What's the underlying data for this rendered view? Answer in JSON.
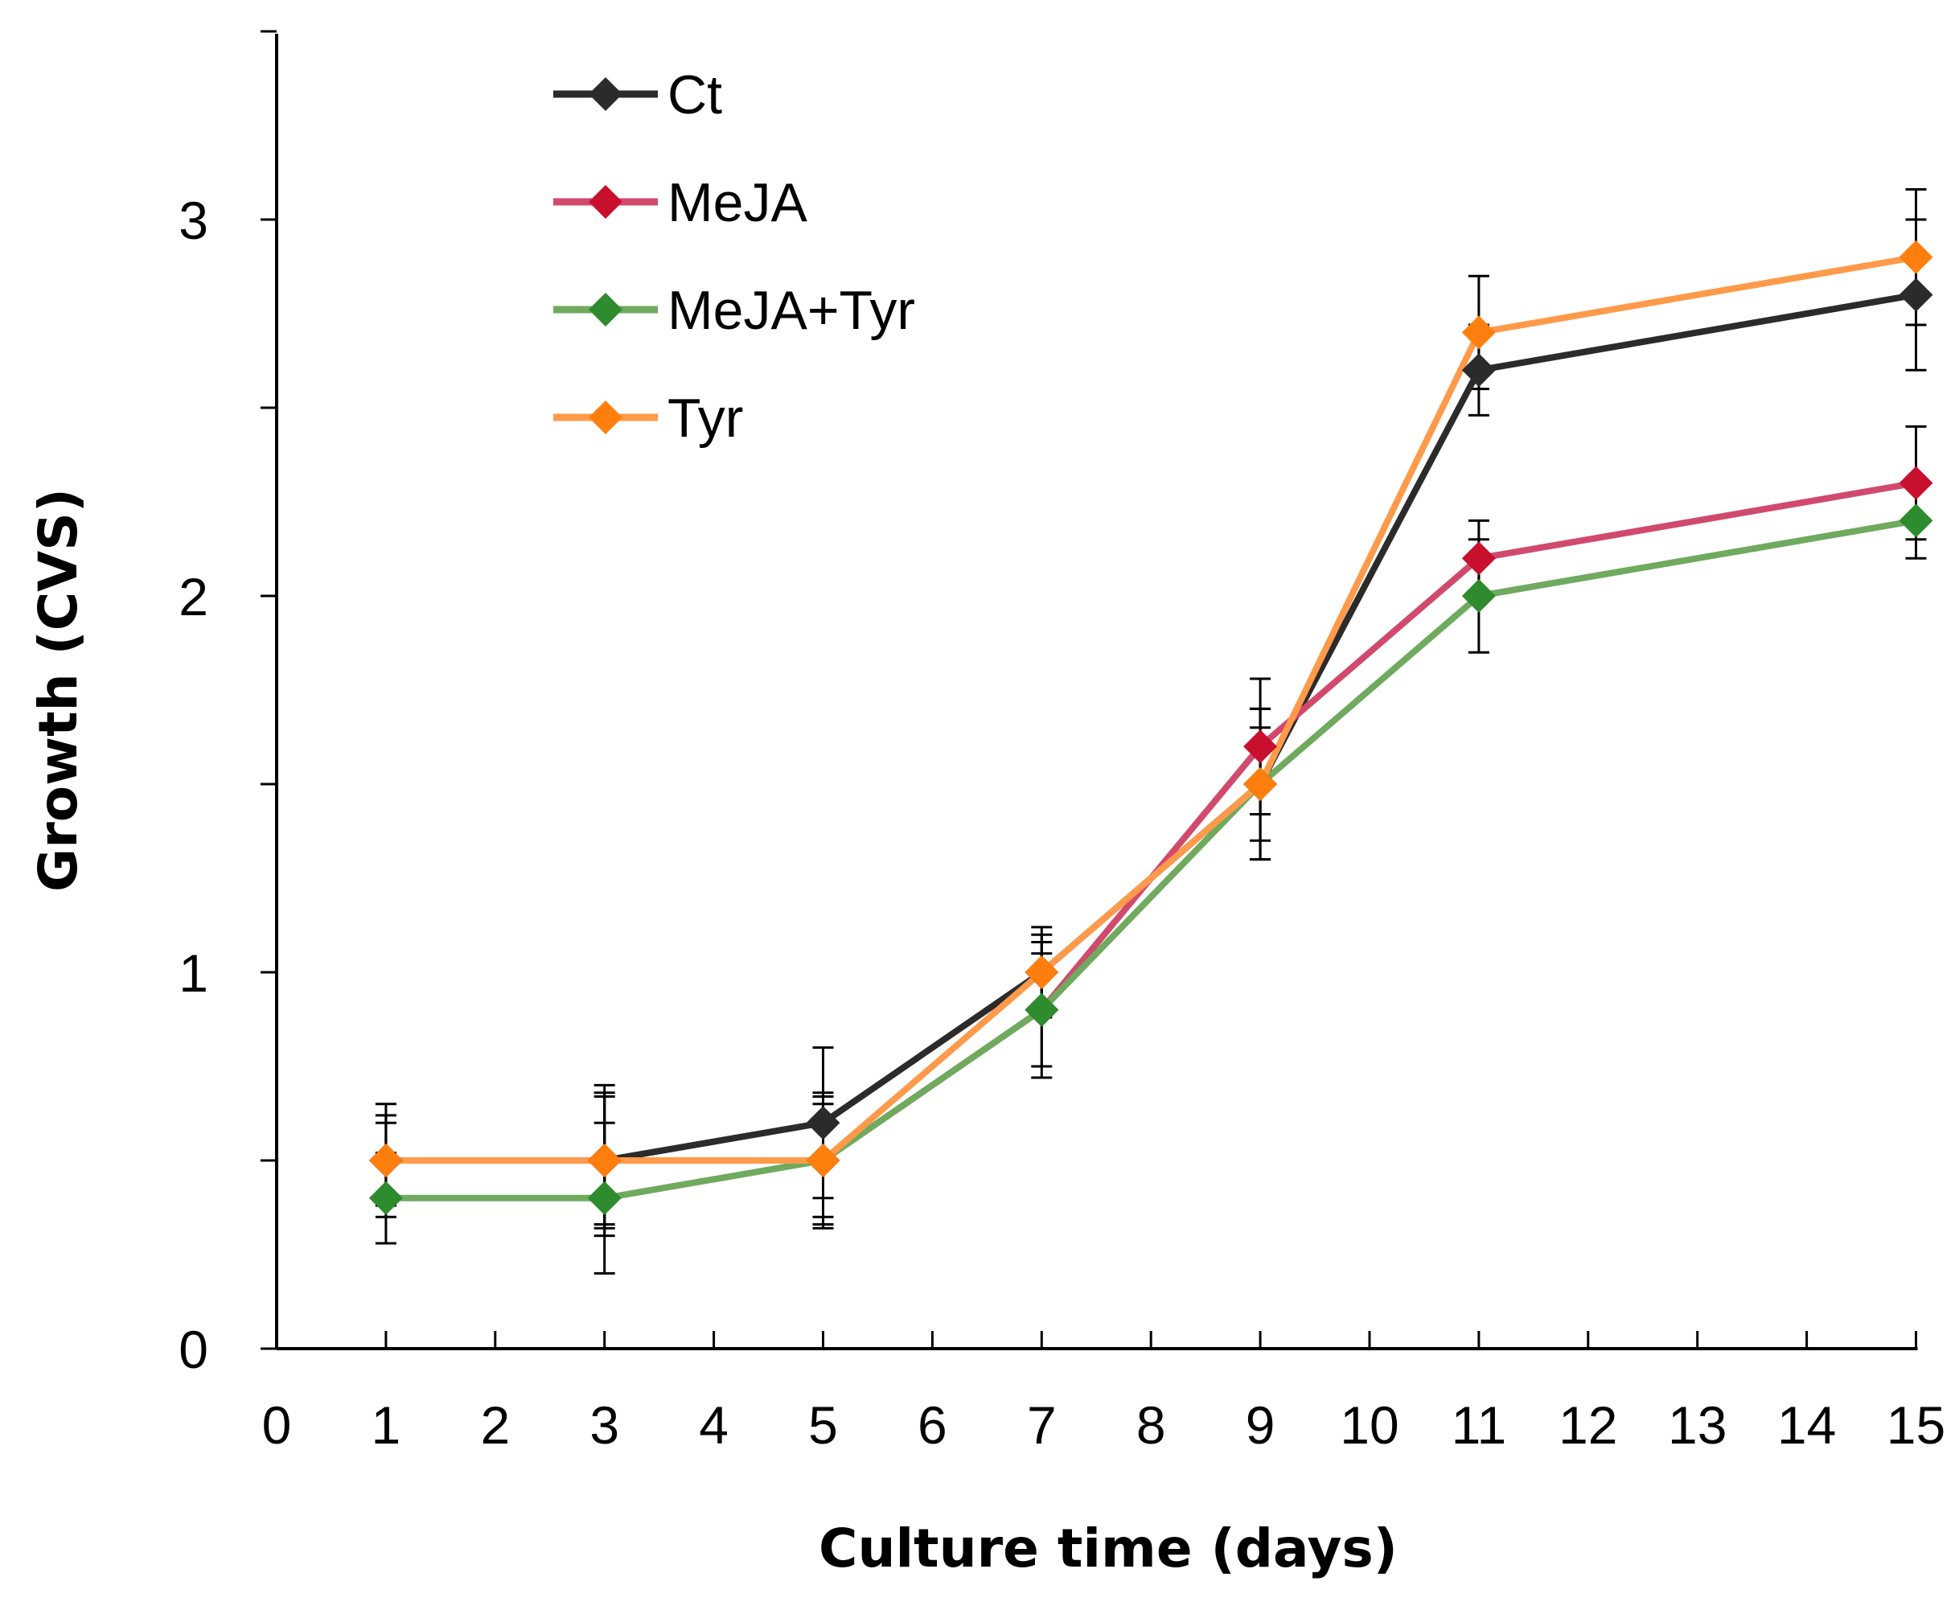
{
  "chart_data": {
    "type": "line",
    "title": "",
    "xlabel": "Culture time (days)",
    "ylabel": "Growth (CVS)",
    "xlim": [
      0,
      15
    ],
    "ylim": [
      0,
      3.5
    ],
    "x_ticks": [
      0,
      1,
      2,
      3,
      4,
      5,
      6,
      7,
      8,
      9,
      10,
      11,
      12,
      13,
      14,
      15
    ],
    "y_major_ticks": [
      0,
      1,
      2,
      3
    ],
    "y_minor_ticks": [
      0.5,
      1.5,
      2.5
    ],
    "grid": false,
    "legend_position": "top-left",
    "x": [
      1,
      3,
      5,
      7,
      9,
      11,
      15
    ],
    "series": [
      {
        "name": "Ct",
        "color": "#2b2b2b",
        "marker": "diamond",
        "values": [
          0.5,
          0.5,
          0.6,
          1.0,
          1.5,
          2.6,
          2.8
        ],
        "errors": [
          0.12,
          0.18,
          0.2,
          0.12,
          0.15,
          0.12,
          0.2
        ]
      },
      {
        "name": "MeJA",
        "color": "#c8102e",
        "line_color": "#d14a6e",
        "marker": "diamond",
        "values": [
          0.5,
          0.5,
          0.5,
          0.9,
          1.6,
          2.1,
          2.3
        ],
        "errors": [
          0.15,
          0.17,
          0.15,
          0.15,
          0.18,
          0.1,
          0.15
        ]
      },
      {
        "name": "MeJA+Tyr",
        "color": "#2e8b2e",
        "line_color": "#6faa5e",
        "marker": "diamond",
        "values": [
          0.4,
          0.4,
          0.5,
          0.9,
          1.5,
          2.0,
          2.2
        ],
        "errors": [
          0.12,
          0.2,
          0.17,
          0.18,
          0.2,
          0.15,
          0.1
        ]
      },
      {
        "name": "Tyr",
        "color": "#ff7f0e",
        "line_color": "#ff9a4a",
        "marker": "diamond",
        "values": [
          0.5,
          0.5,
          0.5,
          1.0,
          1.5,
          2.7,
          2.9
        ],
        "errors": [
          0.1,
          0.2,
          0.18,
          0.1,
          0.2,
          0.15,
          0.18
        ]
      }
    ]
  }
}
